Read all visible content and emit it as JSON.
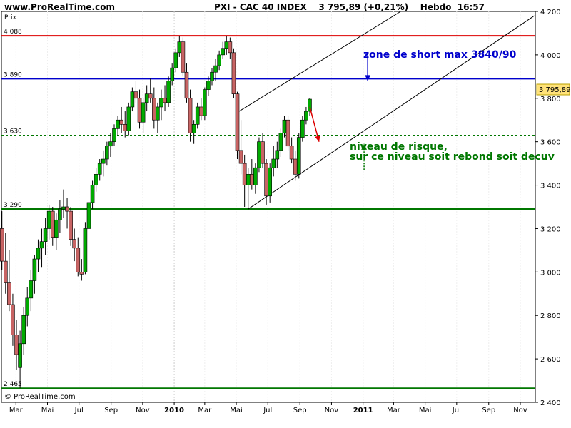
{
  "header": {
    "site": "www.ProRealTime.com",
    "title": "PXI - CAC 40 INDEX    3 795,89 (+0,21%)    Hebdo  16:57"
  },
  "chart_data": {
    "type": "candlestick",
    "ylabel": "Prix",
    "ylim": [
      2400,
      4200
    ],
    "yticks": [
      2400,
      2600,
      2800,
      3000,
      3200,
      3400,
      3600,
      3800,
      4000,
      4200
    ],
    "ytick_labels": [
      "2 400",
      "2 600",
      "2 800",
      "3 000",
      "3 200",
      "3 400",
      "3 600",
      "3 800",
      "4 000",
      "4 200"
    ],
    "x_range": [
      "2009-02-01",
      "2011-11-30"
    ],
    "x_ticks": [
      {
        "date": "2009-03-01",
        "label": "Mar"
      },
      {
        "date": "2009-05-01",
        "label": "Mai"
      },
      {
        "date": "2009-07-01",
        "label": "Jul"
      },
      {
        "date": "2009-09-01",
        "label": "Sep"
      },
      {
        "date": "2009-11-01",
        "label": "Nov"
      },
      {
        "date": "2010-01-01",
        "label": "2010"
      },
      {
        "date": "2010-03-01",
        "label": "Mar"
      },
      {
        "date": "2010-05-01",
        "label": "Mai"
      },
      {
        "date": "2010-07-01",
        "label": "Jul"
      },
      {
        "date": "2010-09-01",
        "label": "Sep"
      },
      {
        "date": "2010-11-01",
        "label": "Nov"
      },
      {
        "date": "2011-01-01",
        "label": "2011"
      },
      {
        "date": "2011-03-01",
        "label": "Mar"
      },
      {
        "date": "2011-05-01",
        "label": "Mai"
      },
      {
        "date": "2011-07-01",
        "label": "Jul"
      },
      {
        "date": "2011-09-01",
        "label": "Sep"
      },
      {
        "date": "2011-11-01",
        "label": "Nov"
      }
    ],
    "last_price_label": "3 795,89",
    "last_price": 3795.89,
    "levels": [
      {
        "value": 4088,
        "label": "4 088",
        "color": "#dd0000",
        "style": "solid"
      },
      {
        "value": 3890,
        "label": "3 890",
        "color": "#0000cc",
        "style": "solid"
      },
      {
        "value": 3630,
        "label": "3 630",
        "color": "#007700",
        "style": "dashed"
      },
      {
        "value": 3290,
        "label": "3 290",
        "color": "#007700",
        "style": "solid"
      },
      {
        "value": 2465,
        "label": "2 465",
        "color": "#007700",
        "style": "solid"
      }
    ],
    "trendlines": [
      {
        "from": [
          "2010-05-03",
          3735
        ],
        "to": [
          "2011-11-28",
          4580
        ],
        "color": "#000000"
      },
      {
        "from": [
          "2010-05-24",
          3290
        ],
        "to": [
          "2011-11-28",
          4180
        ],
        "color": "#000000"
      }
    ],
    "annotations": {
      "short_zone": "zone de short max 3840/90",
      "risk_line1": "niveau de risque,",
      "risk_line2": "sur ce niveau soit rebond soit decuv"
    },
    "arrows": [
      {
        "color": "#0000cc",
        "from": [
          "2011-01-10",
          4010
        ],
        "to": [
          "2011-01-10",
          3880
        ]
      },
      {
        "color": "#dd0000",
        "from": [
          "2010-09-20",
          3760
        ],
        "to": [
          "2010-10-08",
          3600
        ]
      },
      {
        "color": "#007700",
        "from": [
          "2011-01-03",
          3470
        ],
        "to": [
          "2011-01-03",
          3590
        ]
      }
    ],
    "colors": {
      "up": "#00aa00",
      "down": "#c86464",
      "wick": "#000000"
    },
    "footer_credit": "© ProRealTime.com",
    "candles": [
      {
        "d": "2009-02-02",
        "o": 3200,
        "h": 3280,
        "l": 3010,
        "c": 3050
      },
      {
        "d": "2009-02-09",
        "o": 3050,
        "h": 3180,
        "l": 2900,
        "c": 2950
      },
      {
        "d": "2009-02-16",
        "o": 2950,
        "h": 3100,
        "l": 2820,
        "c": 2850
      },
      {
        "d": "2009-02-23",
        "o": 2850,
        "h": 2900,
        "l": 2660,
        "c": 2710
      },
      {
        "d": "2009-03-02",
        "o": 2710,
        "h": 2780,
        "l": 2550,
        "c": 2620
      },
      {
        "d": "2009-03-09",
        "o": 2560,
        "h": 2730,
        "l": 2465,
        "c": 2670
      },
      {
        "d": "2009-03-16",
        "o": 2670,
        "h": 2840,
        "l": 2620,
        "c": 2800
      },
      {
        "d": "2009-03-23",
        "o": 2800,
        "h": 2930,
        "l": 2750,
        "c": 2880
      },
      {
        "d": "2009-03-30",
        "o": 2880,
        "h": 3010,
        "l": 2820,
        "c": 2960
      },
      {
        "d": "2009-04-06",
        "o": 2960,
        "h": 3080,
        "l": 2900,
        "c": 3060
      },
      {
        "d": "2009-04-13",
        "o": 3060,
        "h": 3150,
        "l": 3000,
        "c": 3110
      },
      {
        "d": "2009-04-20",
        "o": 3110,
        "h": 3200,
        "l": 3020,
        "c": 3140
      },
      {
        "d": "2009-04-27",
        "o": 3140,
        "h": 3250,
        "l": 3080,
        "c": 3200
      },
      {
        "d": "2009-05-04",
        "o": 3200,
        "h": 3310,
        "l": 3150,
        "c": 3280
      },
      {
        "d": "2009-05-11",
        "o": 3280,
        "h": 3300,
        "l": 3120,
        "c": 3160
      },
      {
        "d": "2009-05-18",
        "o": 3160,
        "h": 3270,
        "l": 3100,
        "c": 3240
      },
      {
        "d": "2009-05-25",
        "o": 3240,
        "h": 3330,
        "l": 3180,
        "c": 3290
      },
      {
        "d": "2009-06-01",
        "o": 3290,
        "h": 3380,
        "l": 3250,
        "c": 3300
      },
      {
        "d": "2009-06-08",
        "o": 3300,
        "h": 3340,
        "l": 3200,
        "c": 3280
      },
      {
        "d": "2009-06-15",
        "o": 3280,
        "h": 3300,
        "l": 3120,
        "c": 3150
      },
      {
        "d": "2009-06-22",
        "o": 3150,
        "h": 3200,
        "l": 3050,
        "c": 3110
      },
      {
        "d": "2009-06-29",
        "o": 3110,
        "h": 3160,
        "l": 2980,
        "c": 3000
      },
      {
        "d": "2009-07-06",
        "o": 3000,
        "h": 3060,
        "l": 2960,
        "c": 2990
      },
      {
        "d": "2009-07-13",
        "o": 3000,
        "h": 3230,
        "l": 2990,
        "c": 3200
      },
      {
        "d": "2009-07-20",
        "o": 3200,
        "h": 3330,
        "l": 3180,
        "c": 3320
      },
      {
        "d": "2009-07-27",
        "o": 3320,
        "h": 3420,
        "l": 3290,
        "c": 3400
      },
      {
        "d": "2009-08-03",
        "o": 3400,
        "h": 3480,
        "l": 3370,
        "c": 3450
      },
      {
        "d": "2009-08-10",
        "o": 3450,
        "h": 3520,
        "l": 3420,
        "c": 3500
      },
      {
        "d": "2009-08-17",
        "o": 3500,
        "h": 3560,
        "l": 3440,
        "c": 3520
      },
      {
        "d": "2009-08-24",
        "o": 3520,
        "h": 3600,
        "l": 3490,
        "c": 3580
      },
      {
        "d": "2009-08-31",
        "o": 3580,
        "h": 3640,
        "l": 3530,
        "c": 3600
      },
      {
        "d": "2009-09-07",
        "o": 3600,
        "h": 3680,
        "l": 3580,
        "c": 3660
      },
      {
        "d": "2009-09-14",
        "o": 3660,
        "h": 3720,
        "l": 3630,
        "c": 3700
      },
      {
        "d": "2009-09-21",
        "o": 3700,
        "h": 3760,
        "l": 3640,
        "c": 3680
      },
      {
        "d": "2009-09-28",
        "o": 3680,
        "h": 3740,
        "l": 3620,
        "c": 3650
      },
      {
        "d": "2009-10-05",
        "o": 3650,
        "h": 3780,
        "l": 3630,
        "c": 3760
      },
      {
        "d": "2009-10-12",
        "o": 3760,
        "h": 3850,
        "l": 3740,
        "c": 3830
      },
      {
        "d": "2009-10-19",
        "o": 3830,
        "h": 3880,
        "l": 3780,
        "c": 3800
      },
      {
        "d": "2009-10-26",
        "o": 3800,
        "h": 3840,
        "l": 3660,
        "c": 3690
      },
      {
        "d": "2009-11-02",
        "o": 3690,
        "h": 3800,
        "l": 3640,
        "c": 3780
      },
      {
        "d": "2009-11-09",
        "o": 3780,
        "h": 3860,
        "l": 3740,
        "c": 3820
      },
      {
        "d": "2009-11-16",
        "o": 3820,
        "h": 3890,
        "l": 3780,
        "c": 3800
      },
      {
        "d": "2009-11-23",
        "o": 3800,
        "h": 3850,
        "l": 3660,
        "c": 3700
      },
      {
        "d": "2009-11-30",
        "o": 3700,
        "h": 3780,
        "l": 3640,
        "c": 3760
      },
      {
        "d": "2009-12-07",
        "o": 3760,
        "h": 3840,
        "l": 3700,
        "c": 3800
      },
      {
        "d": "2009-12-14",
        "o": 3800,
        "h": 3860,
        "l": 3740,
        "c": 3780
      },
      {
        "d": "2009-12-21",
        "o": 3780,
        "h": 3900,
        "l": 3760,
        "c": 3880
      },
      {
        "d": "2009-12-28",
        "o": 3880,
        "h": 3960,
        "l": 3860,
        "c": 3940
      },
      {
        "d": "2010-01-04",
        "o": 3940,
        "h": 4030,
        "l": 3920,
        "c": 4010
      },
      {
        "d": "2010-01-11",
        "o": 4010,
        "h": 4088,
        "l": 3990,
        "c": 4060
      },
      {
        "d": "2010-01-18",
        "o": 4060,
        "h": 4080,
        "l": 3900,
        "c": 3920
      },
      {
        "d": "2010-01-25",
        "o": 3920,
        "h": 3960,
        "l": 3780,
        "c": 3800
      },
      {
        "d": "2010-02-01",
        "o": 3800,
        "h": 3840,
        "l": 3600,
        "c": 3640
      },
      {
        "d": "2010-02-08",
        "o": 3640,
        "h": 3700,
        "l": 3590,
        "c": 3680
      },
      {
        "d": "2010-02-15",
        "o": 3680,
        "h": 3780,
        "l": 3660,
        "c": 3760
      },
      {
        "d": "2010-02-22",
        "o": 3760,
        "h": 3800,
        "l": 3700,
        "c": 3720
      },
      {
        "d": "2010-03-01",
        "o": 3720,
        "h": 3850,
        "l": 3700,
        "c": 3840
      },
      {
        "d": "2010-03-08",
        "o": 3840,
        "h": 3900,
        "l": 3810,
        "c": 3880
      },
      {
        "d": "2010-03-15",
        "o": 3880,
        "h": 3940,
        "l": 3860,
        "c": 3920
      },
      {
        "d": "2010-03-22",
        "o": 3920,
        "h": 3980,
        "l": 3880,
        "c": 3950
      },
      {
        "d": "2010-03-29",
        "o": 3950,
        "h": 4020,
        "l": 3930,
        "c": 4000
      },
      {
        "d": "2010-04-05",
        "o": 4000,
        "h": 4060,
        "l": 3980,
        "c": 4030
      },
      {
        "d": "2010-04-12",
        "o": 4030,
        "h": 4088,
        "l": 4000,
        "c": 4060
      },
      {
        "d": "2010-04-19",
        "o": 4060,
        "h": 4080,
        "l": 3980,
        "c": 4010
      },
      {
        "d": "2010-04-26",
        "o": 4010,
        "h": 4030,
        "l": 3800,
        "c": 3820
      },
      {
        "d": "2010-05-03",
        "o": 3820,
        "h": 3830,
        "l": 3520,
        "c": 3560
      },
      {
        "d": "2010-05-10",
        "o": 3560,
        "h": 3700,
        "l": 3450,
        "c": 3500
      },
      {
        "d": "2010-05-17",
        "o": 3500,
        "h": 3540,
        "l": 3300,
        "c": 3400
      },
      {
        "d": "2010-05-24",
        "o": 3400,
        "h": 3480,
        "l": 3290,
        "c": 3450
      },
      {
        "d": "2010-05-31",
        "o": 3450,
        "h": 3520,
        "l": 3380,
        "c": 3400
      },
      {
        "d": "2010-06-07",
        "o": 3400,
        "h": 3500,
        "l": 3360,
        "c": 3480
      },
      {
        "d": "2010-06-14",
        "o": 3480,
        "h": 3620,
        "l": 3460,
        "c": 3600
      },
      {
        "d": "2010-06-21",
        "o": 3600,
        "h": 3640,
        "l": 3480,
        "c": 3500
      },
      {
        "d": "2010-06-28",
        "o": 3500,
        "h": 3520,
        "l": 3310,
        "c": 3350
      },
      {
        "d": "2010-07-05",
        "o": 3350,
        "h": 3500,
        "l": 3320,
        "c": 3480
      },
      {
        "d": "2010-07-12",
        "o": 3480,
        "h": 3580,
        "l": 3440,
        "c": 3520
      },
      {
        "d": "2010-07-19",
        "o": 3520,
        "h": 3600,
        "l": 3480,
        "c": 3560
      },
      {
        "d": "2010-07-26",
        "o": 3560,
        "h": 3660,
        "l": 3530,
        "c": 3640
      },
      {
        "d": "2010-08-02",
        "o": 3640,
        "h": 3720,
        "l": 3620,
        "c": 3700
      },
      {
        "d": "2010-08-09",
        "o": 3700,
        "h": 3720,
        "l": 3560,
        "c": 3580
      },
      {
        "d": "2010-08-16",
        "o": 3580,
        "h": 3620,
        "l": 3500,
        "c": 3520
      },
      {
        "d": "2010-08-23",
        "o": 3520,
        "h": 3560,
        "l": 3420,
        "c": 3450
      },
      {
        "d": "2010-08-30",
        "o": 3450,
        "h": 3640,
        "l": 3430,
        "c": 3620
      },
      {
        "d": "2010-09-06",
        "o": 3620,
        "h": 3720,
        "l": 3600,
        "c": 3700
      },
      {
        "d": "2010-09-13",
        "o": 3700,
        "h": 3760,
        "l": 3680,
        "c": 3740
      },
      {
        "d": "2010-09-20",
        "o": 3740,
        "h": 3800,
        "l": 3720,
        "c": 3796
      }
    ]
  }
}
